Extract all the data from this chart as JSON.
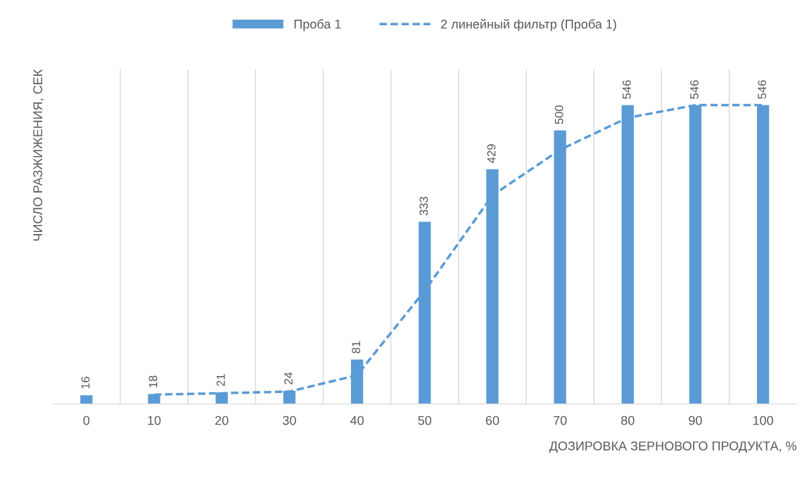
{
  "chart_data": {
    "type": "bar",
    "xlabel": "ДОЗИРОВКА ЗЕРНОВОГО ПРОДУКТА, %",
    "ylabel": "ЧИСЛО РАЗЖИЖЕНИЯ, СЕК",
    "categories": [
      "0",
      "10",
      "20",
      "30",
      "40",
      "50",
      "60",
      "70",
      "80",
      "90",
      "100"
    ],
    "series": [
      {
        "name": "Проба 1",
        "color": "#5b9bd5",
        "values": [
          16,
          18,
          21,
          24,
          81,
          333,
          429,
          500,
          546,
          546,
          546
        ],
        "data_labels": true
      },
      {
        "name": "2 линейный фильтр (Проба 1)",
        "type": "line",
        "color": "#5b9bd5",
        "line_style": "dashed",
        "values": [
          null,
          17,
          19.5,
          22.5,
          52.5,
          207,
          381,
          464.5,
          523,
          546,
          546
        ]
      }
    ],
    "grid": "x",
    "legend": "top"
  }
}
